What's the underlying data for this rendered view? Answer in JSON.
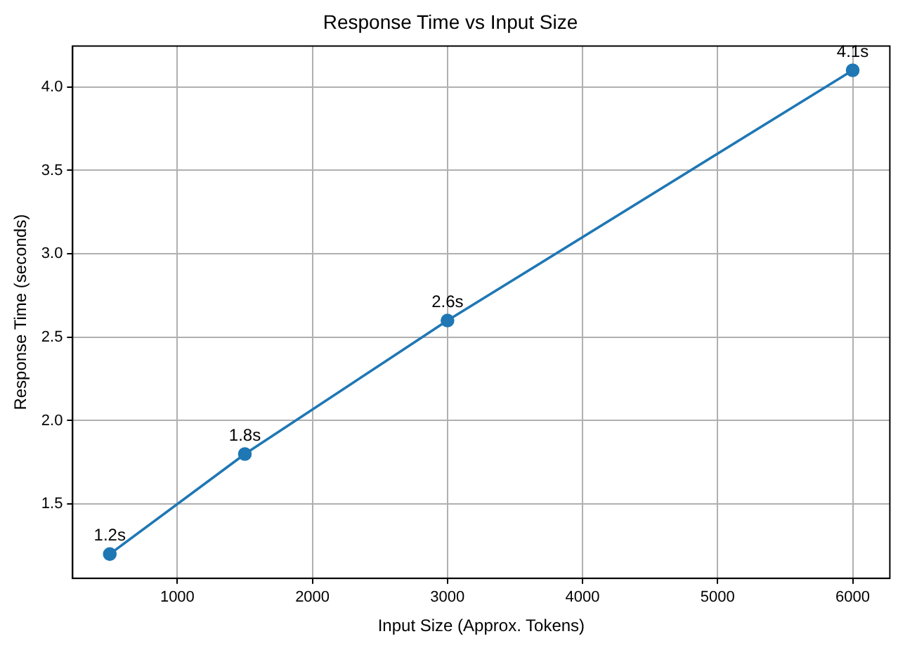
{
  "chart_data": {
    "type": "line",
    "title": "Response Time vs Input Size",
    "xlabel": "Input Size (Approx. Tokens)",
    "ylabel": "Response Time (seconds)",
    "x": [
      500,
      1500,
      3000,
      6000
    ],
    "series": [
      {
        "color": "#1f77b4",
        "values": [
          1.2,
          1.8,
          2.6,
          4.1
        ],
        "value_labels": [
          "1.2s",
          "1.8s",
          "2.6s",
          "4.1s"
        ]
      }
    ],
    "xlim": [
      225,
      6275
    ],
    "xticks": [
      1000,
      2000,
      3000,
      4000,
      5000,
      6000
    ],
    "ylim": [
      1.055,
      4.245
    ],
    "yticks": [
      1.5,
      {
        "value": 2,
        "label": "2.0"
      },
      2.5,
      {
        "value": 3,
        "label": "3.0"
      },
      3.5,
      {
        "value": 4,
        "label": "4.0"
      }
    ],
    "grid": true,
    "marker": "circle",
    "line_style": "solid"
  }
}
